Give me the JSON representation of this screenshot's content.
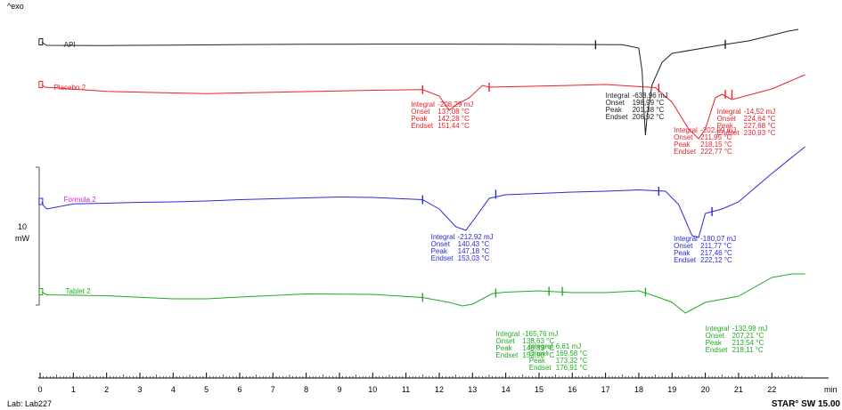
{
  "header": {
    "exo_label": "^exo",
    "footer_left": "Lab: Lab227",
    "footer_right": "STAR° SW 15.00"
  },
  "colors": {
    "api": "#202020",
    "placebo": "#e8232a",
    "formula": "#2a2ad8",
    "tablet": "#22aa22",
    "formula_label": "#e020e0"
  },
  "chart_data": {
    "type": "line",
    "title": "",
    "xlabel": "min",
    "xlim": [
      0,
      23
    ],
    "x_ticks": [
      0,
      1,
      2,
      3,
      4,
      5,
      6,
      7,
      8,
      9,
      10,
      11,
      12,
      13,
      14,
      15,
      16,
      17,
      18,
      19,
      20,
      21,
      22
    ],
    "scale_bar": {
      "value": "10",
      "unit": "mW"
    },
    "series": [
      {
        "name": "API",
        "color_key": "api",
        "label_x": 0.5,
        "label_y": 10,
        "points": [
          [
            0.05,
            7.5
          ],
          [
            0.2,
            11
          ],
          [
            2,
            11.2
          ],
          [
            4,
            10.7
          ],
          [
            6,
            10.1
          ],
          [
            8,
            9.8
          ],
          [
            10,
            9.6
          ],
          [
            12,
            9.6
          ],
          [
            14,
            9.8
          ],
          [
            16,
            10
          ],
          [
            17.5,
            10.2
          ],
          [
            18,
            14
          ],
          [
            18.1,
            40
          ],
          [
            18.15,
            80
          ],
          [
            18.2,
            112
          ],
          [
            18.25,
            90
          ],
          [
            18.4,
            55
          ],
          [
            18.7,
            30
          ],
          [
            19,
            20
          ],
          [
            20.5,
            10.5
          ],
          [
            21.3,
            6
          ],
          [
            22.5,
            -5
          ],
          [
            22.8,
            -7
          ]
        ],
        "markers": [
          [
            16.7,
            10.3
          ],
          [
            20.6,
            9.9
          ]
        ]
      },
      {
        "name": "Placebo 2",
        "color_key": "placebo",
        "label_x": 0.2,
        "label_y": 18,
        "points": [
          [
            0.05,
            15.5
          ],
          [
            0.15,
            18
          ],
          [
            2,
            22.8
          ],
          [
            4,
            24.5
          ],
          [
            5,
            25.2
          ],
          [
            6,
            24.5
          ],
          [
            8,
            23
          ],
          [
            10,
            21.5
          ],
          [
            11.5,
            20.8
          ],
          [
            12,
            28
          ],
          [
            12.3,
            44
          ],
          [
            12.5,
            38
          ],
          [
            12.9,
            30
          ],
          [
            13.3,
            16
          ],
          [
            13.5,
            18
          ],
          [
            16,
            16
          ],
          [
            17,
            15
          ],
          [
            18.5,
            18.5
          ],
          [
            19,
            35
          ],
          [
            19.5,
            65
          ],
          [
            19.8,
            76
          ],
          [
            20,
            65
          ],
          [
            20.3,
            30
          ],
          [
            20.5,
            26
          ],
          [
            20.6,
            28
          ],
          [
            20.8,
            32
          ],
          [
            21,
            30
          ],
          [
            21.2,
            28
          ],
          [
            22,
            20
          ],
          [
            23,
            4
          ]
        ],
        "markers": [
          [
            11.5,
            20.8
          ],
          [
            13.5,
            18
          ],
          [
            18.6,
            19
          ],
          [
            20.6,
            26
          ],
          [
            20.8,
            26
          ]
        ]
      },
      {
        "name": "Formula 2",
        "color_key": "formula",
        "label_x": 0.5,
        "label_y": 19,
        "points": [
          [
            0.05,
            22
          ],
          [
            0.1,
            26
          ],
          [
            0.2,
            30
          ],
          [
            1,
            24.3
          ],
          [
            2,
            23.5
          ],
          [
            3,
            22.5
          ],
          [
            4,
            22
          ],
          [
            5,
            21
          ],
          [
            6,
            19.5
          ],
          [
            7,
            18.5
          ],
          [
            9,
            16.5
          ],
          [
            10,
            17
          ],
          [
            11.5,
            19.5
          ],
          [
            12,
            30
          ],
          [
            12.5,
            50
          ],
          [
            12.8,
            54
          ],
          [
            13,
            44
          ],
          [
            13.5,
            18
          ],
          [
            14,
            14
          ],
          [
            16,
            11
          ],
          [
            17,
            10
          ],
          [
            18,
            8.5
          ],
          [
            18.8,
            10
          ],
          [
            19.2,
            25
          ],
          [
            19.6,
            60
          ],
          [
            19.8,
            62
          ],
          [
            20,
            35
          ],
          [
            20.2,
            33
          ],
          [
            20.5,
            30
          ],
          [
            21,
            22
          ],
          [
            22,
            -10
          ],
          [
            23,
            -40
          ]
        ],
        "markers": [
          [
            11.5,
            19.5
          ],
          [
            13.7,
            13.5
          ],
          [
            18.6,
            10
          ],
          [
            20.2,
            33
          ]
        ]
      },
      {
        "name": "Tablet 2",
        "color_key": "tablet",
        "label_x": 0.55,
        "label_y": -3,
        "points": [
          [
            0.05,
            -1.5
          ],
          [
            0.2,
            1.5
          ],
          [
            2,
            2.5
          ],
          [
            4,
            6
          ],
          [
            5,
            6
          ],
          [
            6,
            4
          ],
          [
            8,
            0.5
          ],
          [
            10,
            1
          ],
          [
            11.5,
            4.5
          ],
          [
            12.3,
            10
          ],
          [
            12.7,
            14
          ],
          [
            13,
            12
          ],
          [
            13.6,
            0
          ],
          [
            14,
            -1.5
          ],
          [
            15,
            -3
          ],
          [
            15.5,
            -2
          ],
          [
            16,
            -1
          ],
          [
            17,
            -1
          ],
          [
            18,
            -3
          ],
          [
            18.5,
            3
          ],
          [
            19,
            10
          ],
          [
            19.4,
            22
          ],
          [
            19.6,
            18
          ],
          [
            20,
            10
          ],
          [
            21,
            3
          ],
          [
            22,
            -18
          ],
          [
            22.6,
            -22
          ],
          [
            23,
            -22
          ]
        ],
        "markers": [
          [
            11.5,
            4.5
          ],
          [
            13.7,
            -0.5
          ],
          [
            15.3,
            -2.5
          ],
          [
            15.7,
            -2.5
          ],
          [
            18.2,
            -1.5
          ]
        ]
      }
    ],
    "annotations": [
      {
        "color_key": "placebo",
        "x": 11.15,
        "y": 32,
        "labels": [
          "Integral",
          "Onset",
          "Peak",
          "Endset"
        ],
        "values": [
          "-208,29 mJ",
          "137,08 °C",
          "142,28 °C",
          "151,44 °C"
        ]
      },
      {
        "color_key": "placebo",
        "x": 20.35,
        "y": 40,
        "labels": [
          "Integral",
          "Onset",
          "Peak",
          "Endset"
        ],
        "values": [
          "-14,52 mJ",
          "224,64 °C",
          "227,68 °C",
          "230,93 °C"
        ]
      },
      {
        "color_key": "placebo",
        "x": 19.05,
        "y": 61,
        "labels": [
          "Integral",
          "Onset",
          "Peak",
          "Endset"
        ],
        "values": [
          "-202,09 mJ",
          "211,95 °C",
          "218,15 °C",
          "222,77 °C"
        ]
      },
      {
        "color_key": "formula",
        "x": 11.75,
        "y": 56,
        "labels": [
          "Integral",
          "Onset",
          "Peak",
          "Endset"
        ],
        "values": [
          "-212,92 mJ",
          "140,43 °C",
          "147,18 °C",
          "153,03 °C"
        ]
      },
      {
        "color_key": "tablet",
        "x": 14.7,
        "y": 54,
        "labels": [
          "Integral",
          "Onset",
          "Peak",
          "Endset"
        ],
        "values": [
          "6,61 mJ",
          "169,58 °C",
          "173,32 °C",
          "176,91 °C"
        ]
      },
      {
        "color_key": "api",
        "x": 17.0,
        "y": 62,
        "labels": [
          "Integral",
          "Onset",
          "Peak",
          "Endset"
        ],
        "values": [
          "-638,96 mJ",
          "198,99 °C",
          "201,38 °C",
          "206,92 °C"
        ]
      },
      {
        "color_key": "formula",
        "x": 19.05,
        "y": 58,
        "labels": [
          "Integral",
          "Onset",
          "Peak",
          "Endset"
        ],
        "values": [
          "-180,07 mJ",
          "211,77 °C",
          "217,46 °C",
          "222,12 °C"
        ]
      },
      {
        "color_key": "tablet",
        "x": 13.7,
        "y": 40,
        "labels": [
          "Integral",
          "Onset",
          "Peak",
          "Endset"
        ],
        "values": [
          "-165,76 mJ",
          "138,63 °C",
          "148,33 °C",
          "153,90 °C"
        ]
      },
      {
        "color_key": "tablet",
        "x": 20.0,
        "y": 34,
        "labels": [
          "Integral",
          "Onset",
          "Peak",
          "Endset"
        ],
        "values": [
          "-132,98 mJ",
          "207,21 °C",
          "213,54 °C",
          "218,11 °C"
        ]
      }
    ]
  }
}
